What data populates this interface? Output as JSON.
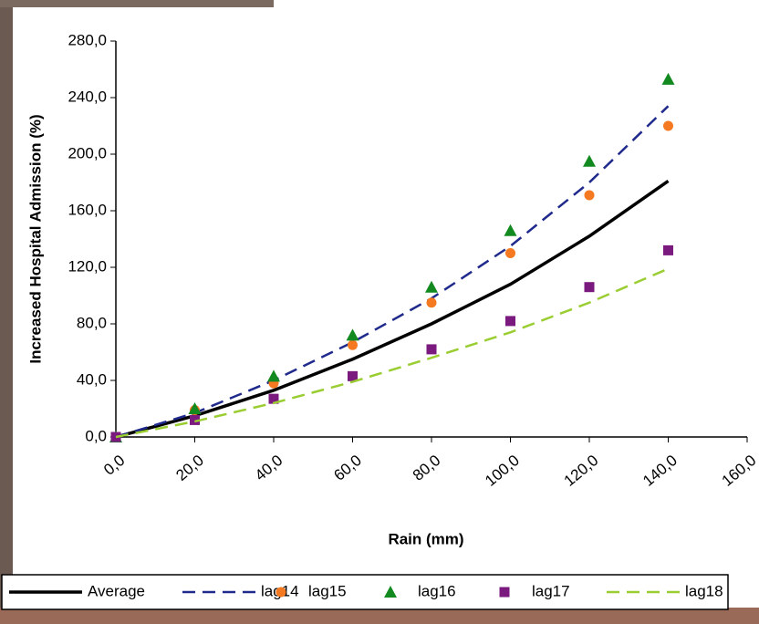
{
  "chart_data": {
    "type": "line",
    "x_label": "Rain (mm)",
    "y_label": "Increased Hospital Admission (%)",
    "x": [
      0,
      20,
      40,
      60,
      80,
      100,
      120,
      140
    ],
    "xlim": [
      0,
      160
    ],
    "xticks": [
      {
        "value": 0,
        "label": "0,0"
      },
      {
        "value": 20,
        "label": "20,0"
      },
      {
        "value": 40,
        "label": "40,0"
      },
      {
        "value": 60,
        "label": "60,0"
      },
      {
        "value": 80,
        "label": "80,0"
      },
      {
        "value": 100,
        "label": "100,0"
      },
      {
        "value": 120,
        "label": "120,0"
      },
      {
        "value": 140,
        "label": "140,0"
      },
      {
        "value": 160,
        "label": "160,0"
      }
    ],
    "ylim": [
      0,
      280
    ],
    "yticks": [
      {
        "value": 0,
        "label": "0,0"
      },
      {
        "value": 40,
        "label": "40,0"
      },
      {
        "value": 80,
        "label": "80,0"
      },
      {
        "value": 120,
        "label": "120,0"
      },
      {
        "value": 160,
        "label": "160,0"
      },
      {
        "value": 200,
        "label": "200,0"
      },
      {
        "value": 240,
        "label": "240,0"
      },
      {
        "value": 280,
        "label": "280,0"
      }
    ],
    "grid": false,
    "legend": "bottom",
    "series": [
      {
        "name": "Average",
        "color": "#000000",
        "mode": "line",
        "dash": false,
        "values": [
          0,
          15,
          33,
          55,
          80,
          108,
          142,
          181
        ]
      },
      {
        "name": "lag14",
        "color": "#1f2a8c",
        "mode": "line",
        "dash": true,
        "values": [
          0,
          17,
          40,
          67,
          98,
          135,
          180,
          234
        ]
      },
      {
        "name": "lag15",
        "color": "#f47920",
        "mode": "marker",
        "marker": "circle",
        "values": [
          0,
          19,
          38,
          65,
          95,
          130,
          171,
          220
        ]
      },
      {
        "name": "lag16",
        "color": "#138a1f",
        "mode": "marker",
        "marker": "triangle",
        "values": [
          0,
          20,
          43,
          72,
          106,
          146,
          195,
          253
        ]
      },
      {
        "name": "lag17",
        "color": "#7b1a7e",
        "mode": "marker",
        "marker": "square",
        "values": [
          0,
          12,
          27,
          43,
          62,
          82,
          106,
          132
        ]
      },
      {
        "name": "lag18",
        "color": "#9acd32",
        "mode": "line",
        "dash": true,
        "values": [
          0,
          11,
          24,
          39,
          56,
          74,
          95,
          119
        ]
      }
    ]
  }
}
